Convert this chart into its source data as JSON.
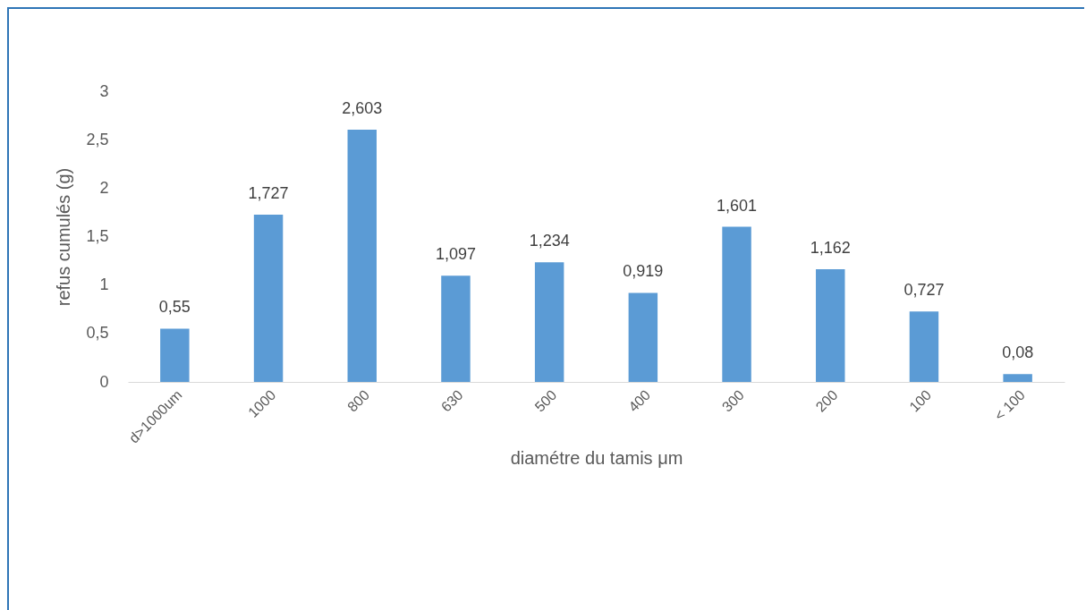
{
  "chart_data": {
    "type": "bar",
    "xlabel": "diamétre du tamis μm",
    "ylabel": "refus cumulés (g)",
    "categories": [
      "d>1000um",
      "1000",
      "800",
      "630",
      "500",
      "400",
      "300",
      "200",
      "100",
      "< 100"
    ],
    "values": [
      0.55,
      1.727,
      2.603,
      1.097,
      1.234,
      0.919,
      1.601,
      1.162,
      0.727,
      0.08
    ],
    "value_labels": [
      "0,55",
      "1,727",
      "2,603",
      "1,097",
      "1,234",
      "0,919",
      "1,601",
      "1,162",
      "0,727",
      "0,08"
    ],
    "color": "#5b9bd5",
    "ylim": [
      0,
      3
    ],
    "yticks": [
      0,
      {
        "value": 0.5,
        "label": "0,5"
      },
      1,
      {
        "value": 1.5,
        "label": "1,5"
      },
      2,
      {
        "value": 2.5,
        "label": "2,5"
      },
      3
    ],
    "grid": false
  }
}
